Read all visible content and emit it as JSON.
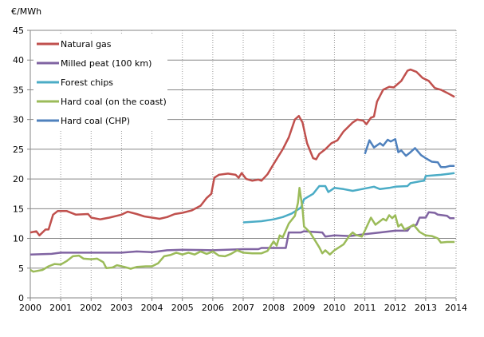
{
  "chart_data": {
    "type": "line",
    "title": "",
    "ylabel": "€/MWh",
    "xlabel": "",
    "xlim": [
      2000,
      2014
    ],
    "ylim": [
      0,
      45
    ],
    "xticks": [
      "2000",
      "2001",
      "2002",
      "2003",
      "2004",
      "2005",
      "2006",
      "2007",
      "2008",
      "2009",
      "2010",
      "2011",
      "2012",
      "2013",
      "2014"
    ],
    "yticks": [
      "0",
      "5",
      "10",
      "15",
      "20",
      "25",
      "30",
      "35",
      "40",
      "45"
    ],
    "grid": {
      "horizontal": "solid",
      "vertical": "dotted"
    },
    "legend": "top-left",
    "series": [
      {
        "name": "Natural gas",
        "color": "#C0504D",
        "x": [
          2000.0,
          2000.2,
          2000.3,
          2000.5,
          2000.6,
          2000.75,
          2000.9,
          2001.2,
          2001.5,
          2001.9,
          2002.0,
          2002.3,
          2002.6,
          2003.0,
          2003.2,
          2003.5,
          2003.75,
          2004.0,
          2004.25,
          2004.5,
          2004.75,
          2005.0,
          2005.3,
          2005.6,
          2005.8,
          2005.95,
          2006.05,
          2006.2,
          2006.5,
          2006.75,
          2006.85,
          2006.95,
          2007.1,
          2007.3,
          2007.5,
          2007.6,
          2007.8,
          2008.0,
          2008.3,
          2008.5,
          2008.7,
          2008.83,
          2008.95,
          2009.1,
          2009.3,
          2009.4,
          2009.5,
          2009.7,
          2009.9,
          2010.1,
          2010.3,
          2010.6,
          2010.75,
          2010.95,
          2011.05,
          2011.2,
          2011.3,
          2011.4,
          2011.6,
          2011.8,
          2011.95,
          2012.2,
          2012.4,
          2012.5,
          2012.7,
          2012.9,
          2013.1,
          2013.3,
          2013.5,
          2013.7,
          2013.95
        ],
        "y": [
          11,
          11.2,
          10.5,
          11.5,
          11.5,
          14,
          14.6,
          14.6,
          14,
          14.1,
          13.5,
          13.2,
          13.5,
          14,
          14.5,
          14.1,
          13.7,
          13.5,
          13.3,
          13.6,
          14.1,
          14.3,
          14.7,
          15.5,
          16.8,
          17.5,
          20.2,
          20.7,
          20.9,
          20.7,
          20.2,
          21,
          20,
          19.7,
          19.9,
          19.7,
          20.8,
          22.5,
          25,
          27,
          30,
          30.6,
          29.5,
          26,
          23.5,
          23.3,
          24.2,
          25,
          26,
          26.5,
          28,
          29.5,
          30,
          29.8,
          29.2,
          30.3,
          30.5,
          33,
          35,
          35.5,
          35.4,
          36.5,
          38.2,
          38.4,
          38,
          37,
          36.5,
          35.3,
          35,
          34.5,
          33.8
        ]
      },
      {
        "name": "Milled peat (100 km)",
        "color": "#8064A2",
        "x": [
          2000,
          2000.7,
          2001,
          2002,
          2003,
          2003.5,
          2004,
          2004.5,
          2005,
          2006,
          2007,
          2007.5,
          2007.6,
          2008.4,
          2008.5,
          2008.9,
          2009.0,
          2009.6,
          2009.7,
          2010.0,
          2010.5,
          2011,
          2011.5,
          2012,
          2012.4,
          2012.5,
          2012.7,
          2012.8,
          2013.0,
          2013.1,
          2013.3,
          2013.4,
          2013.7,
          2013.8,
          2013.95
        ],
        "y": [
          7.3,
          7.4,
          7.6,
          7.6,
          7.6,
          7.8,
          7.7,
          8,
          8.1,
          8.0,
          8.2,
          8.2,
          8.4,
          8.4,
          11,
          11,
          11.2,
          11,
          10.3,
          10.5,
          10.4,
          10.7,
          11,
          11.3,
          11.3,
          12,
          12.3,
          13.5,
          13.5,
          14.4,
          14.3,
          14,
          13.8,
          13.4,
          13.4
        ]
      },
      {
        "name": "Forest chips",
        "color": "#4BACC6",
        "x": [
          2007.0,
          2007.6,
          2008.0,
          2008.3,
          2008.6,
          2008.9,
          2009.0,
          2009.3,
          2009.5,
          2009.7,
          2009.8,
          2010.0,
          2010.3,
          2010.6,
          2010.9,
          2011.3,
          2011.5,
          2011.8,
          2012.0,
          2012.4,
          2012.5,
          2012.8,
          2012.95,
          2013.0,
          2013.5,
          2013.95
        ],
        "y": [
          12.7,
          12.9,
          13.2,
          13.6,
          14.2,
          15.2,
          16.6,
          17.5,
          18.8,
          18.8,
          17.8,
          18.5,
          18.3,
          18.0,
          18.3,
          18.7,
          18.3,
          18.5,
          18.7,
          18.8,
          19.3,
          19.6,
          19.7,
          20.5,
          20.7,
          21
        ]
      },
      {
        "name": "Hard coal (on the coast)",
        "color": "#9BBB59",
        "x": [
          2000,
          2000.1,
          2000.4,
          2000.6,
          2000.8,
          2001.0,
          2001.2,
          2001.4,
          2001.6,
          2001.75,
          2002.0,
          2002.2,
          2002.4,
          2002.5,
          2002.7,
          2002.85,
          2003.1,
          2003.3,
          2003.5,
          2003.8,
          2004.0,
          2004.2,
          2004.4,
          2004.6,
          2004.8,
          2005.0,
          2005.2,
          2005.4,
          2005.6,
          2005.8,
          2006.0,
          2006.2,
          2006.4,
          2006.6,
          2006.8,
          2007.0,
          2007.3,
          2007.6,
          2007.8,
          2008.0,
          2008.1,
          2008.2,
          2008.3,
          2008.5,
          2008.7,
          2008.8,
          2008.85,
          2008.95,
          2009.0,
          2009.2,
          2009.5,
          2009.6,
          2009.7,
          2009.85,
          2010.0,
          2010.3,
          2010.5,
          2010.6,
          2010.7,
          2010.9,
          2011.0,
          2011.2,
          2011.35,
          2011.6,
          2011.7,
          2011.8,
          2011.9,
          2012.0,
          2012.1,
          2012.2,
          2012.3,
          2012.5,
          2012.6,
          2012.8,
          2013.0,
          2013.2,
          2013.4,
          2013.5,
          2013.7,
          2013.95
        ],
        "y": [
          4.7,
          4.4,
          4.7,
          5.3,
          5.7,
          5.6,
          6.2,
          7.0,
          7.1,
          6.6,
          6.5,
          6.6,
          6.0,
          5.0,
          5.1,
          5.5,
          5.2,
          4.9,
          5.2,
          5.3,
          5.3,
          5.8,
          7.0,
          7.2,
          7.6,
          7.3,
          7.6,
          7.3,
          7.8,
          7.4,
          7.8,
          7.1,
          7.0,
          7.4,
          8.0,
          7.6,
          7.5,
          7.5,
          7.9,
          9.5,
          8.8,
          10.5,
          10.2,
          12.5,
          13.8,
          16,
          18.5,
          15,
          12,
          11,
          8.5,
          7.5,
          8.0,
          7.3,
          8.0,
          9.0,
          10.5,
          11.0,
          10.6,
          10.3,
          11.3,
          13.5,
          12.3,
          13.3,
          13.0,
          13.9,
          13.4,
          13.9,
          12.0,
          12.4,
          11.5,
          12.0,
          12.3,
          11.1,
          10.5,
          10.4,
          10.0,
          9.3,
          9.4,
          9.4
        ]
      },
      {
        "name": "Hard coal (CHP)",
        "color": "#4F81BD",
        "x": [
          2011.0,
          2011.15,
          2011.3,
          2011.5,
          2011.6,
          2011.75,
          2011.85,
          2012.0,
          2012.1,
          2012.2,
          2012.35,
          2012.5,
          2012.65,
          2012.85,
          2013.0,
          2013.2,
          2013.4,
          2013.5,
          2013.65,
          2013.8,
          2013.95
        ],
        "y": [
          24.2,
          26.5,
          25.3,
          26,
          25.6,
          26.6,
          26.3,
          26.7,
          24.5,
          24.8,
          23.9,
          24.5,
          25.2,
          24,
          23.5,
          22.9,
          22.8,
          22.0,
          22.0,
          22.2,
          22.2
        ]
      }
    ]
  }
}
